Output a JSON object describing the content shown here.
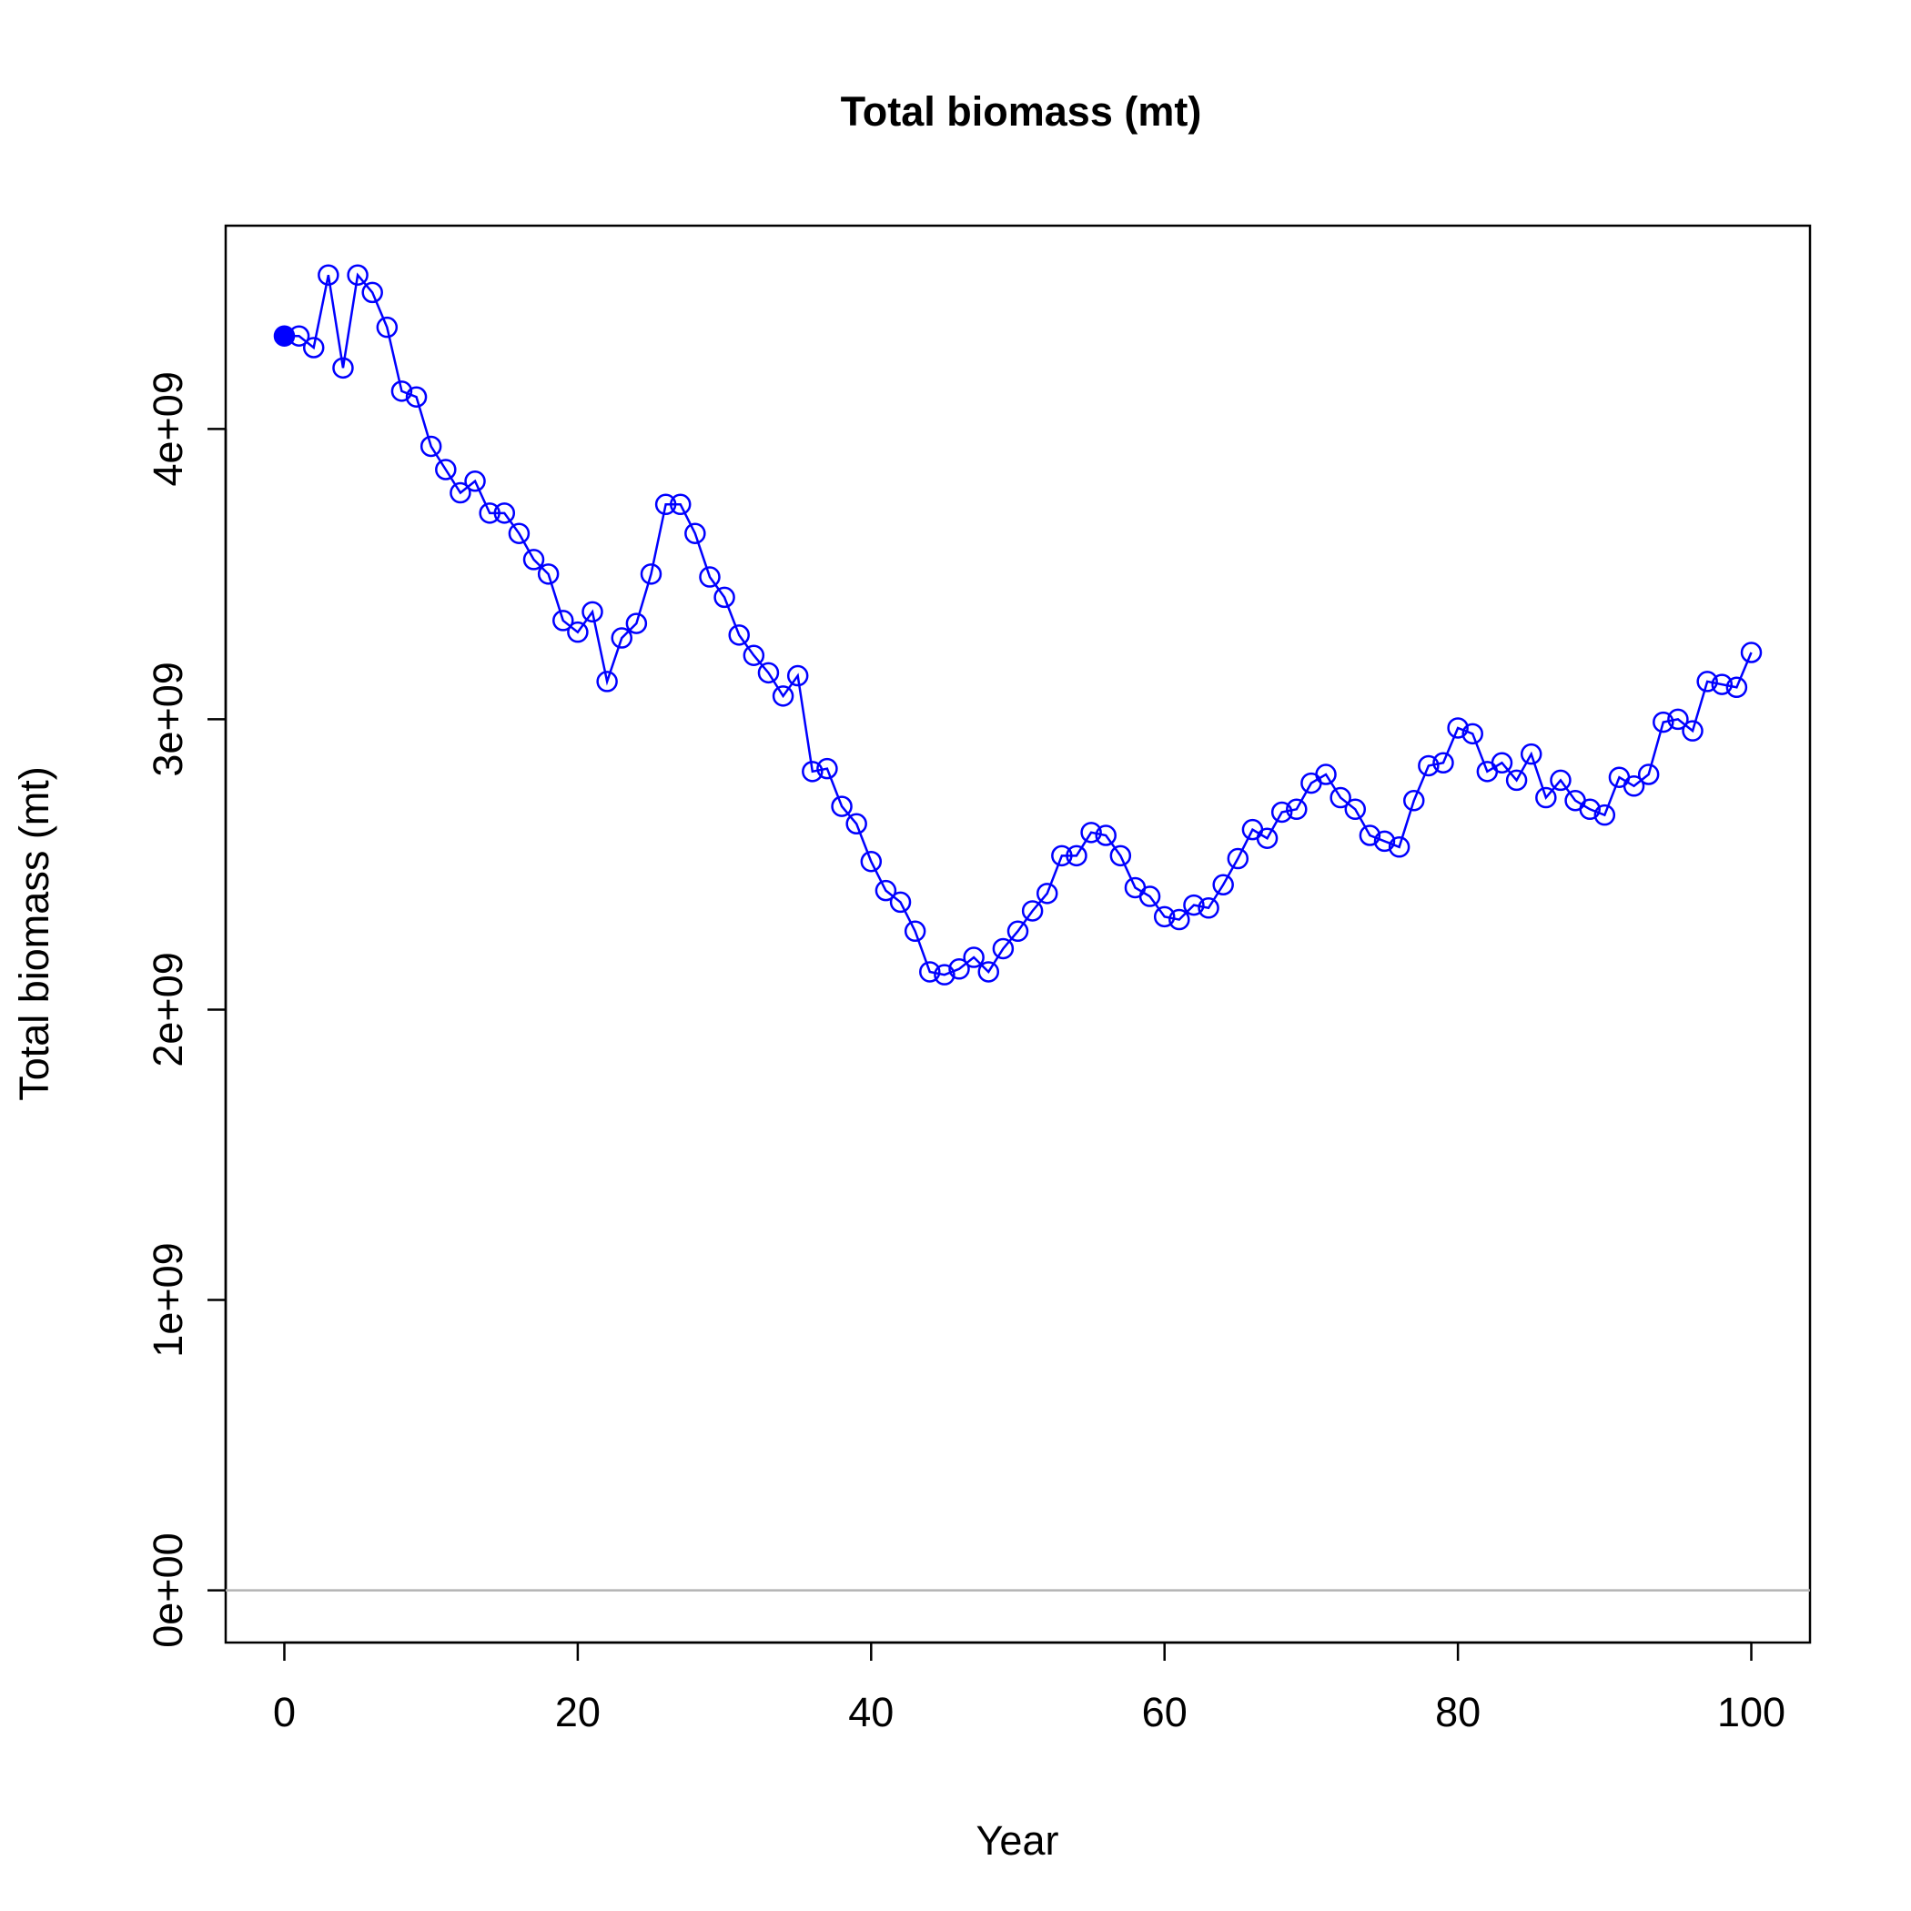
{
  "chart_data": {
    "type": "line",
    "title": "Total biomass (mt)",
    "xlabel": "Year",
    "ylabel": "Total biomass (mt)",
    "xlim": [
      -4,
      104
    ],
    "ylim": [
      -180000000,
      4700000000
    ],
    "xticks": [
      0,
      20,
      40,
      60,
      80,
      100
    ],
    "xtick_labels": [
      "0",
      "20",
      "40",
      "60",
      "80",
      "100"
    ],
    "yticks": [
      0,
      1000000000,
      2000000000,
      3000000000,
      4000000000
    ],
    "ytick_labels": [
      "0e+00",
      "1e+09",
      "2e+09",
      "3e+09",
      "4e+09"
    ],
    "reference_line": {
      "y": 0,
      "color": "#b3b3b3"
    },
    "grid": false,
    "series": [
      {
        "color": "#0000ff",
        "marker": "open-circle",
        "first_point_marker": "filled-circle",
        "x": [
          0,
          1,
          2,
          3,
          4,
          5,
          6,
          7,
          8,
          9,
          10,
          11,
          12,
          13,
          14,
          15,
          16,
          17,
          18,
          19,
          20,
          21,
          22,
          23,
          24,
          25,
          26,
          27,
          28,
          29,
          30,
          31,
          32,
          33,
          34,
          35,
          36,
          37,
          38,
          39,
          40,
          41,
          42,
          43,
          44,
          45,
          46,
          47,
          48,
          49,
          50,
          51,
          52,
          53,
          54,
          55,
          56,
          57,
          58,
          59,
          60,
          61,
          62,
          63,
          64,
          65,
          66,
          67,
          68,
          69,
          70,
          71,
          72,
          73,
          74,
          75,
          76,
          77,
          78,
          79,
          80,
          81,
          82,
          83,
          84,
          85,
          86,
          87,
          88,
          89,
          90,
          91,
          92,
          93,
          94,
          95,
          96,
          97,
          98,
          99,
          100
        ],
        "y": [
          4320000000,
          4320000000,
          4280000000,
          4530000000,
          4210000000,
          4530000000,
          4470000000,
          4350000000,
          4130000000,
          4110000000,
          3940000000,
          3860000000,
          3780000000,
          3820000000,
          3710000000,
          3710000000,
          3640000000,
          3550000000,
          3500000000,
          3340000000,
          3300000000,
          3370000000,
          3130000000,
          3280000000,
          3330000000,
          3500000000,
          3740000000,
          3740000000,
          3640000000,
          3490000000,
          3420000000,
          3290000000,
          3220000000,
          3160000000,
          3080000000,
          3150000000,
          2820000000,
          2830000000,
          2700000000,
          2640000000,
          2510000000,
          2410000000,
          2370000000,
          2270000000,
          2130000000,
          2120000000,
          2140000000,
          2180000000,
          2130000000,
          2210000000,
          2270000000,
          2340000000,
          2400000000,
          2530000000,
          2530000000,
          2610000000,
          2600000000,
          2530000000,
          2420000000,
          2390000000,
          2320000000,
          2310000000,
          2360000000,
          2350000000,
          2430000000,
          2520000000,
          2620000000,
          2590000000,
          2680000000,
          2690000000,
          2780000000,
          2810000000,
          2730000000,
          2690000000,
          2600000000,
          2580000000,
          2560000000,
          2720000000,
          2840000000,
          2850000000,
          2970000000,
          2950000000,
          2820000000,
          2850000000,
          2790000000,
          2880000000,
          2730000000,
          2790000000,
          2720000000,
          2690000000,
          2670000000,
          2800000000,
          2770000000,
          2810000000,
          2990000000,
          3000000000,
          2960000000,
          3130000000,
          3120000000,
          3110000000,
          3230000000
        ]
      }
    ]
  }
}
